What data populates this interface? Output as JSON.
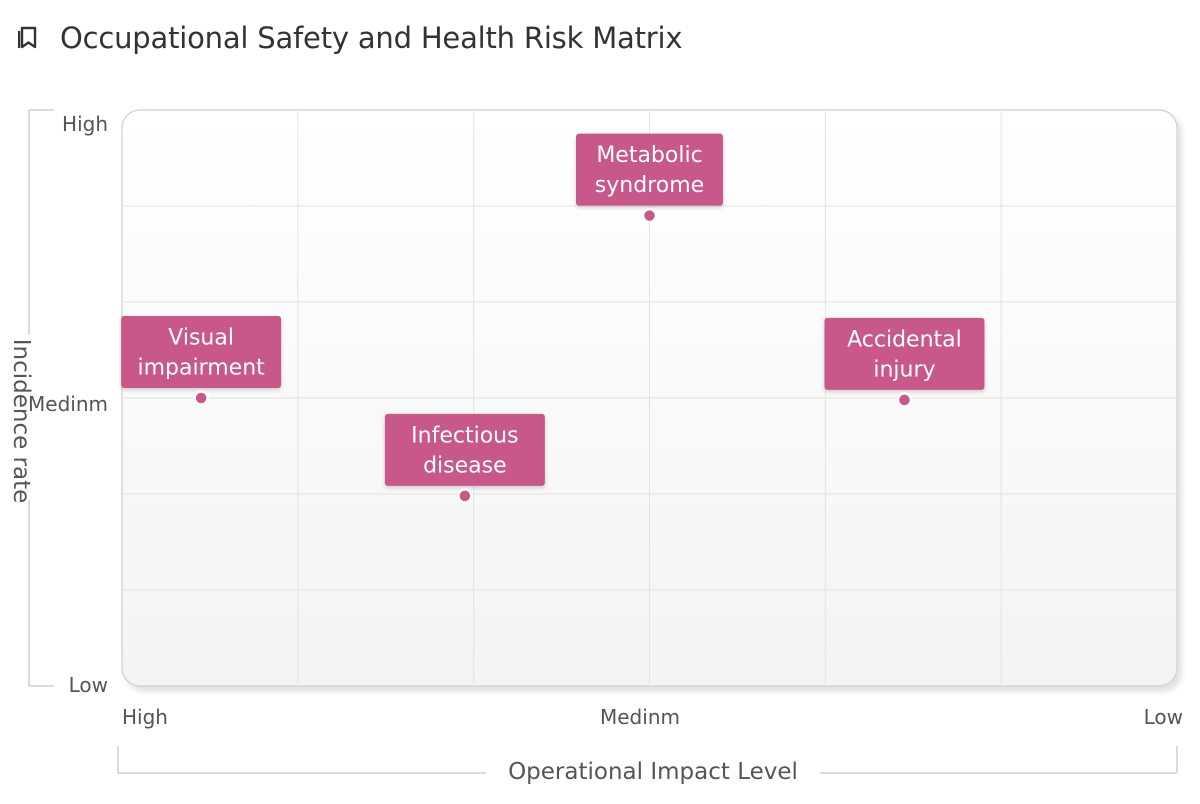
{
  "header": {
    "title": "Occupational Safety and Health Risk Matrix",
    "icon": "bookmark-icon"
  },
  "colors": {
    "accent": "#c8588a",
    "grid": "#e3e3e3",
    "frame": "#cfcfcf",
    "text": "#555555"
  },
  "chart_data": {
    "type": "scatter",
    "title": "Occupational Safety and Health Risk Matrix",
    "xlabel": "Operational Impact Level",
    "ylabel": "Incidence rate",
    "x_ticks": [
      "High",
      "Medinm",
      "Low"
    ],
    "y_ticks": [
      "High",
      "Medinm",
      "Low"
    ],
    "xlim": [
      0,
      6
    ],
    "ylim": [
      0,
      6
    ],
    "grid": true,
    "points": [
      {
        "label": "Metabolic syndrome",
        "lines": [
          "Metabolic",
          "syndrome"
        ],
        "x": 3.0,
        "y": 4.9
      },
      {
        "label": "Visual impairment",
        "lines": [
          "Visual",
          "impairment"
        ],
        "x": 0.45,
        "y": 3.0
      },
      {
        "label": "Accidental injury",
        "lines": [
          "Accidental",
          "injury"
        ],
        "x": 4.45,
        "y": 2.98
      },
      {
        "label": "Infectious disease",
        "lines": [
          "Infectious",
          "disease"
        ],
        "x": 1.95,
        "y": 1.98
      }
    ]
  }
}
